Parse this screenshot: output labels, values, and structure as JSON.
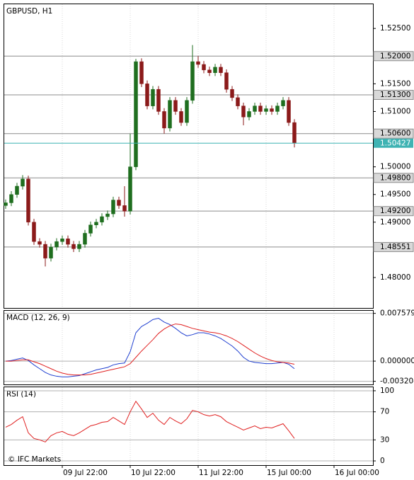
{
  "chart_data": [
    {
      "type": "candlestick",
      "title": "GBPUSD, H1",
      "open": [
        1.493,
        1.4935,
        1.495,
        1.4965,
        1.4978,
        1.49,
        1.4865,
        1.486,
        1.4835,
        1.4855,
        1.4865,
        1.487,
        1.486,
        1.4852,
        1.486,
        1.488,
        1.4895,
        1.49,
        1.491,
        1.4915,
        1.494,
        1.493,
        1.492,
        1.5,
        1.519,
        1.515,
        1.511,
        1.514,
        1.51,
        1.507,
        1.512,
        1.51,
        1.508,
        1.512,
        1.519,
        1.5185,
        1.5175,
        1.517,
        1.518,
        1.517,
        1.514,
        1.5125,
        1.511,
        1.509,
        1.51,
        1.511,
        1.51,
        1.5105,
        1.51,
        1.511,
        1.512,
        1.508
      ],
      "high": [
        1.4941,
        1.4956,
        1.4971,
        1.4985,
        1.4984,
        1.4906,
        1.4871,
        1.4866,
        1.4861,
        1.4871,
        1.4876,
        1.4876,
        1.4866,
        1.4866,
        1.4886,
        1.4901,
        1.4906,
        1.4916,
        1.4921,
        1.4946,
        1.4946,
        1.4965,
        1.506,
        1.5195,
        1.5196,
        1.5156,
        1.5146,
        1.5146,
        1.5106,
        1.5126,
        1.5126,
        1.5106,
        1.5126,
        1.522,
        1.52,
        1.5191,
        1.5181,
        1.5186,
        1.5186,
        1.5176,
        1.5146,
        1.5131,
        1.5116,
        1.5106,
        1.5116,
        1.5116,
        1.5111,
        1.5111,
        1.5116,
        1.5126,
        1.5126,
        1.5086
      ],
      "low": [
        1.4924,
        1.4929,
        1.4944,
        1.4959,
        1.4894,
        1.4859,
        1.4854,
        1.482,
        1.4829,
        1.4849,
        1.4859,
        1.4854,
        1.4846,
        1.4846,
        1.4854,
        1.4874,
        1.4889,
        1.4894,
        1.4904,
        1.4909,
        1.4924,
        1.491,
        1.4914,
        1.4994,
        1.5144,
        1.5104,
        1.5104,
        1.5094,
        1.506,
        1.5064,
        1.5094,
        1.5074,
        1.5074,
        1.5114,
        1.5179,
        1.5169,
        1.5164,
        1.5164,
        1.5164,
        1.5134,
        1.5119,
        1.5104,
        1.5075,
        1.5084,
        1.5094,
        1.5094,
        1.5094,
        1.5094,
        1.5094,
        1.5104,
        1.5074,
        1.5035
      ],
      "close": [
        1.4935,
        1.495,
        1.4965,
        1.4978,
        1.49,
        1.4865,
        1.486,
        1.4835,
        1.4855,
        1.4865,
        1.487,
        1.486,
        1.4852,
        1.486,
        1.488,
        1.4895,
        1.49,
        1.491,
        1.4915,
        1.494,
        1.493,
        1.492,
        1.5,
        1.519,
        1.515,
        1.511,
        1.514,
        1.51,
        1.507,
        1.512,
        1.51,
        1.508,
        1.512,
        1.519,
        1.5185,
        1.5175,
        1.517,
        1.518,
        1.517,
        1.514,
        1.5125,
        1.511,
        1.509,
        1.51,
        1.511,
        1.51,
        1.5105,
        1.51,
        1.511,
        1.512,
        1.508,
        1.5043
      ],
      "up_color": "#1f6e1f",
      "down_color": "#8b1a1a",
      "ylim": [
        1.4745,
        1.5295
      ],
      "yticks": [
        {
          "value": 1.525,
          "label": "1.52500"
        },
        {
          "value": 1.515,
          "label": "1.51500"
        },
        {
          "value": 1.51,
          "label": "1.51000"
        },
        {
          "value": 1.5,
          "label": "1.50000"
        },
        {
          "value": 1.495,
          "label": "1.49500"
        },
        {
          "value": 1.49,
          "label": "1.49000"
        },
        {
          "value": 1.48,
          "label": "1.48000"
        }
      ],
      "levels": [
        {
          "value": 1.52,
          "label": "1.52000"
        },
        {
          "value": 1.513,
          "label": "1.51300"
        },
        {
          "value": 1.506,
          "label": "1.50600"
        },
        {
          "value": 1.498,
          "label": "1.49800"
        },
        {
          "value": 1.492,
          "label": "1.49200"
        },
        {
          "value": 1.48551,
          "label": "1.48551"
        }
      ],
      "level_color": "#8c8c8c",
      "current": {
        "value": 1.50427,
        "label": "1.50427"
      },
      "current_color": "#3fb3b3"
    },
    {
      "type": "line",
      "title": "MACD (12, 26, 9)",
      "series": [
        {
          "color": "#1f3fd0",
          "values": [
            0.0,
            0.0001,
            0.0003,
            0.0005,
            0.0001,
            -0.0006,
            -0.0012,
            -0.0018,
            -0.0022,
            -0.0024,
            -0.0025,
            -0.0025,
            -0.0024,
            -0.0023,
            -0.002,
            -0.0017,
            -0.0014,
            -0.0012,
            -0.001,
            -0.0006,
            -0.0004,
            -0.0003,
            0.0015,
            0.0045,
            0.0055,
            0.006,
            0.0066,
            0.0068,
            0.0062,
            0.0058,
            0.0052,
            0.0045,
            0.004,
            0.0042,
            0.0045,
            0.0045,
            0.0043,
            0.004,
            0.0036,
            0.003,
            0.0024,
            0.0016,
            0.0006,
            0.0,
            -0.0002,
            -0.0003,
            -0.0004,
            -0.0004,
            -0.0003,
            -0.0002,
            -0.0005,
            -0.0012
          ]
        },
        {
          "color": "#e02020",
          "values": [
            0.0,
            0.0,
            0.0001,
            0.0002,
            0.0002,
            -0.0001,
            -0.0004,
            -0.0008,
            -0.0012,
            -0.0016,
            -0.0019,
            -0.0021,
            -0.0022,
            -0.0022,
            -0.0022,
            -0.0021,
            -0.0019,
            -0.0017,
            -0.0015,
            -0.0013,
            -0.0011,
            -0.0009,
            -0.0004,
            0.0006,
            0.0016,
            0.0025,
            0.0034,
            0.0044,
            0.0051,
            0.0056,
            0.0059,
            0.0058,
            0.0055,
            0.0052,
            0.005,
            0.0048,
            0.0046,
            0.0045,
            0.0043,
            0.004,
            0.0036,
            0.0031,
            0.0025,
            0.0019,
            0.0013,
            0.0008,
            0.0004,
            0.0001,
            -0.0001,
            -0.0002,
            -0.0003,
            -0.0005
          ]
        }
      ],
      "ylim": [
        -0.0037,
        0.0081
      ],
      "yticks": [
        {
          "value": 0.007579,
          "label": "0.007579"
        },
        {
          "value": 0,
          "label": "0.000000"
        },
        {
          "value": -0.003204,
          "label": "-0.003204"
        }
      ],
      "grid": true
    },
    {
      "type": "line",
      "title": "RSI (14)",
      "series": [
        {
          "color": "#e02020",
          "values": [
            48,
            52,
            58,
            63,
            40,
            32,
            30,
            27,
            36,
            40,
            42,
            38,
            36,
            40,
            45,
            50,
            52,
            55,
            56,
            62,
            57,
            52,
            70,
            85,
            74,
            62,
            68,
            58,
            52,
            62,
            57,
            53,
            60,
            72,
            70,
            66,
            64,
            66,
            63,
            56,
            52,
            48,
            44,
            47,
            50,
            46,
            48,
            47,
            50,
            53,
            43,
            32,
            null,
            null,
            null,
            null,
            null,
            null,
            null
          ]
        }
      ],
      "ylim": [
        -6,
        106
      ],
      "yticks": [
        100,
        70,
        30,
        0
      ],
      "grid": true,
      "annotation": "© IFC Markets",
      "categories": [
        null,
        null,
        null,
        null,
        null,
        null,
        null,
        null,
        null,
        null,
        "09 Jul 22:00",
        null,
        null,
        null,
        null,
        null,
        null,
        null,
        null,
        null,
        null,
        null,
        "10 Jul 22:00",
        null,
        null,
        null,
        null,
        null,
        null,
        null,
        null,
        null,
        null,
        null,
        "11 Jul 22:00",
        null,
        null,
        null,
        null,
        null,
        null,
        null,
        null,
        null,
        null,
        null,
        "15 Jul 00:00",
        null,
        null,
        null,
        null,
        null,
        null,
        null,
        null,
        null,
        null,
        null,
        "16 Jul 00:00"
      ]
    }
  ]
}
